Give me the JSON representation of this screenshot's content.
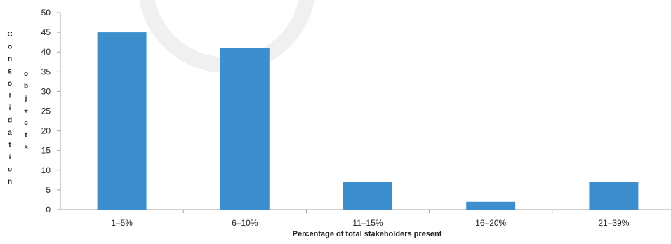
{
  "chart_data": {
    "type": "bar",
    "categories": [
      "1–5%",
      "6–10%",
      "11–15%",
      "16–20%",
      "21–39%"
    ],
    "values": [
      45,
      41,
      7,
      2,
      7
    ],
    "xlabel": "Percentage of total stakeholders present",
    "ylabel_lines": [
      "Consolidation",
      "objects"
    ],
    "ylim": [
      0,
      50
    ],
    "yticks": [
      0,
      5,
      10,
      15,
      20,
      25,
      30,
      35,
      40,
      45,
      50
    ],
    "grid": false,
    "legend": "none",
    "bar_color": "#3c8fcc",
    "axis_color": "#a0a0a0"
  }
}
